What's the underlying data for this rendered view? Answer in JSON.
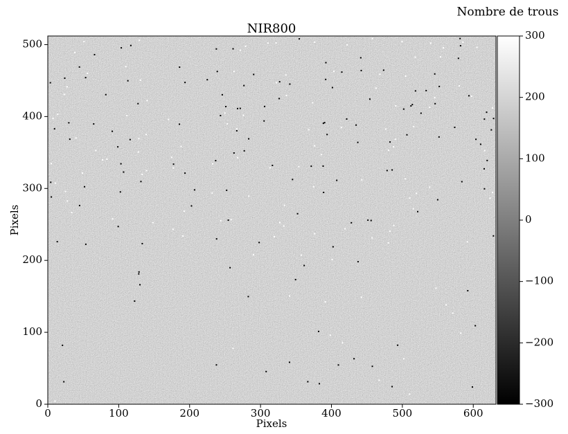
{
  "chart_data": {
    "type": "image",
    "title": "NIR800",
    "xlabel": "Pixels",
    "ylabel": "Pixels",
    "xlim": [
      0,
      632
    ],
    "ylim": [
      0,
      512
    ],
    "xticks": [
      0,
      100,
      200,
      300,
      400,
      500,
      600
    ],
    "yticks": [
      0,
      100,
      200,
      300,
      400,
      500
    ],
    "colormap": "gray",
    "colorbar": {
      "label": "Nombre de trous",
      "clim": [
        -300,
        300
      ],
      "ticks": [
        {
          "value": -300,
          "label": "−300"
        },
        {
          "value": -200,
          "label": "−200"
        },
        {
          "value": -100,
          "label": "−100"
        },
        0,
        100,
        200,
        300
      ]
    }
  }
}
